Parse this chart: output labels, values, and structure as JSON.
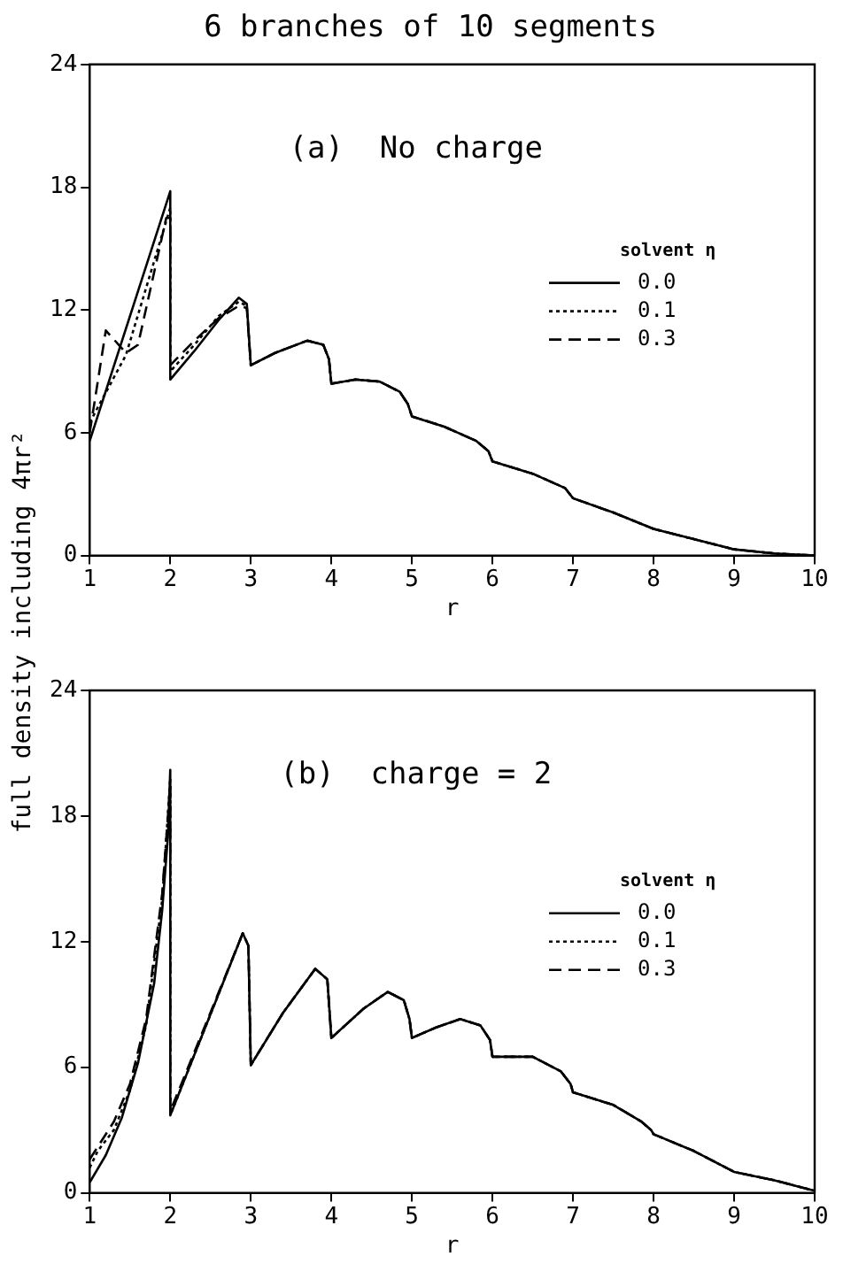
{
  "chart_data": [
    {
      "type": "line",
      "title": "6 branches of 10 segments",
      "xlabel": "r",
      "ylabel": "full density including 4πr²",
      "legend_title": "solvent η",
      "annotations": [
        "(a)  No charge"
      ],
      "xlim": [
        1,
        10
      ],
      "xticks": [
        1,
        2,
        3,
        4,
        5,
        6,
        7,
        8,
        9,
        10
      ],
      "ylim": [
        0,
        24
      ],
      "yticks": [
        0,
        6,
        12,
        18,
        24
      ],
      "grid": false,
      "legend": "right",
      "marker": "none",
      "series": [
        {
          "name": "0.0",
          "color": "#000000",
          "line_style": "solid",
          "x": [
            1,
            2,
            2,
            2.3,
            2.6,
            2.85,
            2.95,
            3,
            3.3,
            3.7,
            3.9,
            3.97,
            4,
            4.3,
            4.6,
            4.85,
            4.95,
            5,
            5.4,
            5.8,
            5.95,
            6,
            6.5,
            6.9,
            7,
            7.5,
            8,
            8.5,
            9,
            9.5,
            10
          ],
          "values": [
            5.6,
            17.8,
            8.6,
            10,
            11.5,
            12.6,
            12.3,
            9.3,
            9.9,
            10.5,
            10.3,
            9.6,
            8.4,
            8.6,
            8.5,
            8,
            7.4,
            6.8,
            6.3,
            5.6,
            5.1,
            4.6,
            4,
            3.3,
            2.8,
            2.1,
            1.3,
            0.8,
            0.3,
            0.1,
            0
          ]
        },
        {
          "name": "0.1",
          "color": "#000000",
          "line_style": "dotted",
          "x": [
            1,
            1.45,
            2,
            2,
            2.3,
            2.6,
            2.85,
            2.95,
            3,
            3.3,
            3.7,
            3.9,
            3.97,
            4,
            4.3,
            4.6,
            4.85,
            4.95,
            5,
            5.4,
            5.8,
            5.95,
            6,
            6.5,
            6.9,
            7,
            7.5,
            8,
            8.5,
            9,
            9.5,
            10
          ],
          "values": [
            6.5,
            9.8,
            17,
            9,
            10.3,
            11.7,
            12.4,
            12.2,
            9.3,
            9.9,
            10.5,
            10.3,
            9.6,
            8.4,
            8.6,
            8.5,
            8,
            7.4,
            6.8,
            6.3,
            5.6,
            5.1,
            4.6,
            4,
            3.3,
            2.8,
            2.1,
            1.3,
            0.8,
            0.3,
            0.1,
            0
          ]
        },
        {
          "name": "0.3",
          "color": "#000000",
          "line_style": "dashed",
          "x": [
            1,
            1.2,
            1.45,
            1.6,
            1.95,
            2,
            2,
            2.3,
            2.6,
            2.85,
            2.95,
            3,
            3.3,
            3.7,
            3.9,
            3.97,
            4,
            4.3,
            4.6,
            4.85,
            4.95,
            5,
            5.4,
            5.8,
            5.95,
            6,
            6.5,
            6.9,
            7,
            7.5,
            8,
            8.5,
            9,
            9.5,
            10
          ],
          "values": [
            6,
            11,
            9.9,
            10.3,
            16.5,
            16.5,
            9.3,
            10.5,
            11.6,
            12.2,
            12.1,
            9.3,
            9.9,
            10.5,
            10.3,
            9.6,
            8.4,
            8.6,
            8.5,
            8,
            7.4,
            6.8,
            6.3,
            5.6,
            5.1,
            4.6,
            4,
            3.3,
            2.8,
            2.1,
            1.3,
            0.8,
            0.3,
            0.1,
            0
          ]
        }
      ]
    },
    {
      "type": "line",
      "xlabel": "r",
      "legend_title": "solvent η",
      "annotations": [
        "(b)  charge = 2"
      ],
      "xlim": [
        1,
        10
      ],
      "xticks": [
        1,
        2,
        3,
        4,
        5,
        6,
        7,
        8,
        9,
        10
      ],
      "ylim": [
        0,
        24
      ],
      "yticks": [
        0,
        6,
        12,
        18,
        24
      ],
      "grid": false,
      "legend": "right",
      "marker": "none",
      "series": [
        {
          "name": "0.0",
          "color": "#000000",
          "line_style": "solid",
          "x": [
            1,
            1.2,
            1.4,
            1.6,
            1.8,
            1.9,
            1.97,
            2,
            2,
            2.9,
            2.97,
            3,
            3.4,
            3.8,
            3.95,
            4,
            4.4,
            4.7,
            4.9,
            4.97,
            5,
            5.3,
            5.6,
            5.85,
            5.97,
            6,
            6.5,
            6.85,
            6.97,
            7,
            7.5,
            7.85,
            7.97,
            8,
            8.5,
            9,
            9.5,
            10
          ],
          "values": [
            0.5,
            1.8,
            3.6,
            6.2,
            10,
            13.5,
            17,
            20.2,
            3.7,
            12.4,
            11.8,
            6.1,
            8.6,
            10.7,
            10.2,
            7.4,
            8.8,
            9.6,
            9.2,
            8.3,
            7.4,
            7.9,
            8.3,
            8,
            7.3,
            6.5,
            6.5,
            5.8,
            5.2,
            4.8,
            4.2,
            3.4,
            3,
            2.8,
            2,
            1,
            0.6,
            0.1
          ]
        },
        {
          "name": "0.1",
          "color": "#000000",
          "line_style": "dotted",
          "x": [
            1,
            1.1,
            1.3,
            1.5,
            1.7,
            1.9,
            2,
            2,
            2.9,
            2.97,
            3,
            3.4,
            3.8,
            3.95,
            4,
            4.4,
            4.7,
            4.9,
            4.97,
            5,
            5.3,
            5.6,
            5.85,
            5.97,
            6,
            6.5,
            6.85,
            6.97,
            7,
            7.5,
            7.85,
            7.97,
            8,
            8.5,
            9,
            9.5,
            10
          ],
          "values": [
            1.2,
            2,
            3,
            4.9,
            8,
            14,
            19.8,
            3.7,
            12.4,
            11.8,
            6.1,
            8.6,
            10.7,
            10.2,
            7.4,
            8.8,
            9.6,
            9.2,
            8.3,
            7.4,
            7.9,
            8.3,
            8,
            7.3,
            6.5,
            6.5,
            5.8,
            5.2,
            4.8,
            4.2,
            3.4,
            3,
            2.8,
            2,
            1,
            0.6,
            0.1
          ]
        },
        {
          "name": "0.3",
          "color": "#000000",
          "line_style": "dashed",
          "x": [
            1,
            1.1,
            1.3,
            1.5,
            1.7,
            1.9,
            2,
            2,
            2.9,
            2.97,
            3,
            3.4,
            3.8,
            3.95,
            4,
            4.4,
            4.7,
            4.9,
            4.97,
            5,
            5.3,
            5.6,
            5.85,
            5.97,
            6,
            6.5,
            6.85,
            6.97,
            7,
            7.5,
            7.85,
            7.97,
            8,
            8.5,
            9,
            9.5,
            10
          ],
          "values": [
            1.6,
            2.2,
            3.4,
            5.2,
            8.3,
            14.3,
            19.5,
            3.9,
            12.4,
            11.8,
            6.1,
            8.6,
            10.7,
            10.2,
            7.4,
            8.8,
            9.6,
            9.2,
            8.3,
            7.4,
            7.9,
            8.3,
            8,
            7.3,
            6.5,
            6.5,
            5.8,
            5.2,
            4.8,
            4.2,
            3.4,
            3,
            2.8,
            2,
            1,
            0.6,
            0.1
          ]
        }
      ]
    }
  ]
}
